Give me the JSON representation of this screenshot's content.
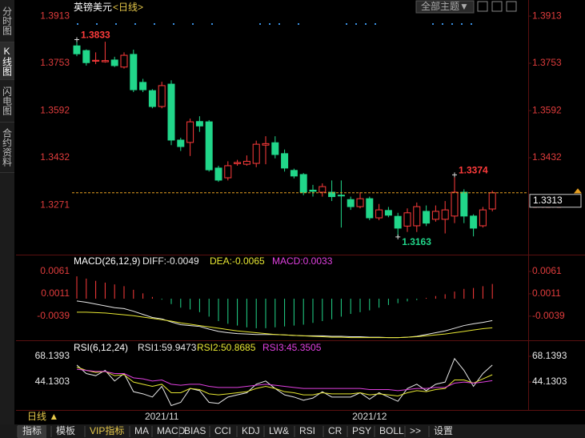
{
  "header": {
    "symbol": "英镑美元",
    "period": "<日线>",
    "theme_menu": "全部主题▼"
  },
  "ui": {
    "side_tabs": [
      "分时图",
      "K线图",
      "闪电图",
      "合约资料"
    ],
    "period_button": "日线 ▲",
    "tabs": [
      "指标",
      "模板",
      "VIP指标",
      "MA",
      "MACD",
      "BIAS",
      "CCI",
      "KDJ",
      "LW&",
      "RSI",
      "CR",
      "PSY",
      "BOLL",
      ">>",
      "设置"
    ]
  },
  "chart_data": [
    {
      "type": "candlestick",
      "categories": [
        null,
        null,
        null,
        null,
        null,
        null,
        null,
        null,
        null,
        "2021/11",
        null,
        null,
        null,
        null,
        null,
        null,
        null,
        null,
        null,
        null,
        null,
        null,
        null,
        null,
        null,
        null,
        null,
        null,
        null,
        null,
        null,
        "2021/12",
        null,
        null,
        null,
        null,
        null,
        null,
        null,
        null,
        null,
        null,
        null,
        null,
        null
      ],
      "open": [
        1.3812,
        1.3796,
        1.376,
        1.3758,
        1.3764,
        1.374,
        1.3783,
        1.3688,
        1.366,
        1.3606,
        1.3682,
        1.3492,
        1.3484,
        1.3555,
        1.3554,
        1.3397,
        1.3364,
        1.3412,
        1.341,
        1.3413,
        1.3475,
        1.3483,
        1.3446,
        1.3389,
        1.3375,
        1.3322,
        1.3315,
        1.3315,
        1.3305,
        1.329,
        1.3266,
        1.3293,
        1.3228,
        1.3253,
        1.3233,
        1.32,
        1.3201,
        1.325,
        1.3223,
        1.3223,
        1.3234,
        1.3315,
        1.3234,
        1.3201,
        1.3258
      ],
      "high": [
        1.3833,
        1.38,
        1.379,
        1.3826,
        1.3775,
        1.379,
        1.3799,
        1.37,
        1.3665,
        1.369,
        1.3695,
        1.35,
        1.3565,
        1.3573,
        1.356,
        1.3405,
        1.342,
        1.3425,
        1.344,
        1.349,
        1.3505,
        1.3505,
        1.346,
        1.3395,
        1.338,
        1.334,
        1.3345,
        1.3355,
        1.3355,
        1.33,
        1.3315,
        1.33,
        1.3275,
        1.3265,
        1.3245,
        1.326,
        1.328,
        1.327,
        1.327,
        1.3285,
        1.3374,
        1.3325,
        1.324,
        1.3265,
        1.332
      ],
      "low": [
        1.3777,
        1.3745,
        1.375,
        1.3755,
        1.374,
        1.3735,
        1.3655,
        1.3655,
        1.36,
        1.36,
        1.3475,
        1.3455,
        1.3438,
        1.352,
        1.3385,
        1.335,
        1.3355,
        1.3405,
        1.3405,
        1.34,
        1.341,
        1.343,
        1.3385,
        1.3362,
        1.3305,
        1.33,
        1.33,
        1.3285,
        1.3195,
        1.3255,
        1.326,
        1.322,
        1.322,
        1.323,
        1.3163,
        1.318,
        1.318,
        1.32,
        1.3215,
        1.3175,
        1.321,
        1.321,
        1.3165,
        1.3195,
        1.325
      ],
      "close": [
        1.3785,
        1.3755,
        1.3763,
        1.3762,
        1.3745,
        1.378,
        1.3663,
        1.3663,
        1.3606,
        1.3677,
        1.3492,
        1.347,
        1.3554,
        1.354,
        1.3391,
        1.3356,
        1.3405,
        1.3416,
        1.342,
        1.3478,
        1.348,
        1.3443,
        1.3397,
        1.337,
        1.3315,
        1.3318,
        1.3334,
        1.33,
        1.3303,
        1.3266,
        1.3293,
        1.3228,
        1.3255,
        1.3237,
        1.3193,
        1.3245,
        1.3266,
        1.321,
        1.325,
        1.3255,
        1.3315,
        1.3234,
        1.3193,
        1.3255,
        1.3313
      ],
      "up_color": "#ff3b3b",
      "down_color": "#21d68a",
      "ylim": [
        1.3103,
        1.3946
      ],
      "yticks": [
        1.3913,
        1.3753,
        1.3592,
        1.3432,
        1.3271
      ],
      "annotations": [
        {
          "value": 1.3833,
          "label": "1.3833"
        },
        {
          "value": 1.3374,
          "label": "1.3374"
        },
        {
          "value": 1.3163,
          "label": "1.3163"
        }
      ],
      "last_price": 1.3313
    },
    {
      "type": "macd",
      "title": "MACD(26,12,9)",
      "series": [
        {
          "name": "DIFF:-0.0049",
          "color": "#e8e8e8",
          "values": [
            -0.0005,
            -0.0008,
            -0.0012,
            -0.0016,
            -0.002,
            -0.0022,
            -0.0028,
            -0.0035,
            -0.0042,
            -0.0045,
            -0.0052,
            -0.0058,
            -0.006,
            -0.0062,
            -0.0068,
            -0.0073,
            -0.0076,
            -0.0078,
            -0.0079,
            -0.008,
            -0.008,
            -0.008,
            -0.0081,
            -0.0082,
            -0.0083,
            -0.0083,
            -0.0083,
            -0.0084,
            -0.0084,
            -0.0085,
            -0.0085,
            -0.0086,
            -0.0086,
            -0.0087,
            -0.0087,
            -0.0086,
            -0.0084,
            -0.008,
            -0.0076,
            -0.0072,
            -0.0066,
            -0.006,
            -0.0056,
            -0.0053,
            -0.0049
          ]
        },
        {
          "name": "DEA:-0.0065",
          "color": "#e6e632",
          "values": [
            -0.003,
            -0.003,
            -0.0031,
            -0.0032,
            -0.0034,
            -0.0036,
            -0.0038,
            -0.0041,
            -0.0044,
            -0.0047,
            -0.005,
            -0.0054,
            -0.0057,
            -0.006,
            -0.0063,
            -0.0066,
            -0.0069,
            -0.0072,
            -0.0074,
            -0.0076,
            -0.0078,
            -0.008,
            -0.0081,
            -0.0082,
            -0.0083,
            -0.0084,
            -0.0085,
            -0.0086,
            -0.0086,
            -0.0087,
            -0.0087,
            -0.0087,
            -0.0087,
            -0.0087,
            -0.0087,
            -0.0086,
            -0.0085,
            -0.0083,
            -0.0081,
            -0.0079,
            -0.0076,
            -0.0073,
            -0.007,
            -0.0067,
            -0.0065
          ]
        },
        {
          "name": "MACD:0.0033",
          "color": "#e040e0",
          "up_color": "#ff3b3b",
          "down_color": "#21d68a",
          "values": [
            0.005,
            0.0045,
            0.004,
            0.0036,
            0.0032,
            0.0028,
            0.002,
            0.0012,
            0.0004,
            -0.0002,
            -0.0012,
            -0.002,
            -0.0024,
            -0.003,
            -0.004,
            -0.005,
            -0.0056,
            -0.006,
            -0.0064,
            -0.0066,
            -0.0066,
            -0.0064,
            -0.0062,
            -0.006,
            -0.0058,
            -0.0054,
            -0.005,
            -0.0046,
            -0.004,
            -0.0034,
            -0.003,
            -0.0026,
            -0.002,
            -0.0014,
            -0.001,
            -0.0006,
            -0.0003,
            0.0002,
            0.0006,
            0.001,
            0.0016,
            0.0022,
            0.0024,
            0.0028,
            0.0033
          ]
        }
      ],
      "ylim": [
        -0.0093,
        0.0095
      ],
      "yticks": [
        0.0061,
        0.0011,
        -0.0039
      ]
    },
    {
      "type": "line",
      "title": "RSI(6,12,24)",
      "series": [
        {
          "name": "RSI1:59.9473",
          "color": "#e8e8e8",
          "values": [
            60,
            52,
            50,
            55,
            45,
            52,
            35,
            33,
            30,
            40,
            22,
            25,
            38,
            36,
            25,
            24,
            30,
            32,
            34,
            42,
            45,
            38,
            32,
            30,
            27,
            29,
            35,
            30,
            30,
            30,
            34,
            28,
            34,
            30,
            26,
            38,
            42,
            36,
            42,
            44,
            66,
            55,
            40,
            52,
            59.9473
          ]
        },
        {
          "name": "RSI2:50.8685",
          "color": "#e6e632",
          "values": [
            58,
            55,
            53,
            54,
            50,
            51,
            44,
            42,
            40,
            42,
            34,
            34,
            38,
            37,
            33,
            32,
            33,
            34,
            35,
            38,
            40,
            38,
            35,
            34,
            32,
            32,
            34,
            33,
            33,
            33,
            34,
            32,
            33,
            32,
            31,
            34,
            36,
            35,
            37,
            38,
            46,
            46,
            43,
            47,
            50.8685
          ]
        },
        {
          "name": "RSI3:45.3505",
          "color": "#e040e0",
          "values": [
            56,
            55,
            54,
            54,
            52,
            52,
            48,
            47,
            45,
            46,
            42,
            41,
            42,
            42,
            40,
            39,
            39,
            39,
            40,
            41,
            42,
            41,
            40,
            39,
            38,
            38,
            38,
            38,
            38,
            38,
            38,
            37,
            37,
            37,
            36,
            37,
            38,
            38,
            39,
            39,
            43,
            44,
            43,
            44,
            45.3505
          ]
        }
      ],
      "ylim": [
        17.87,
        80.89
      ],
      "yticks": [
        68.1393,
        44.1303
      ]
    }
  ]
}
